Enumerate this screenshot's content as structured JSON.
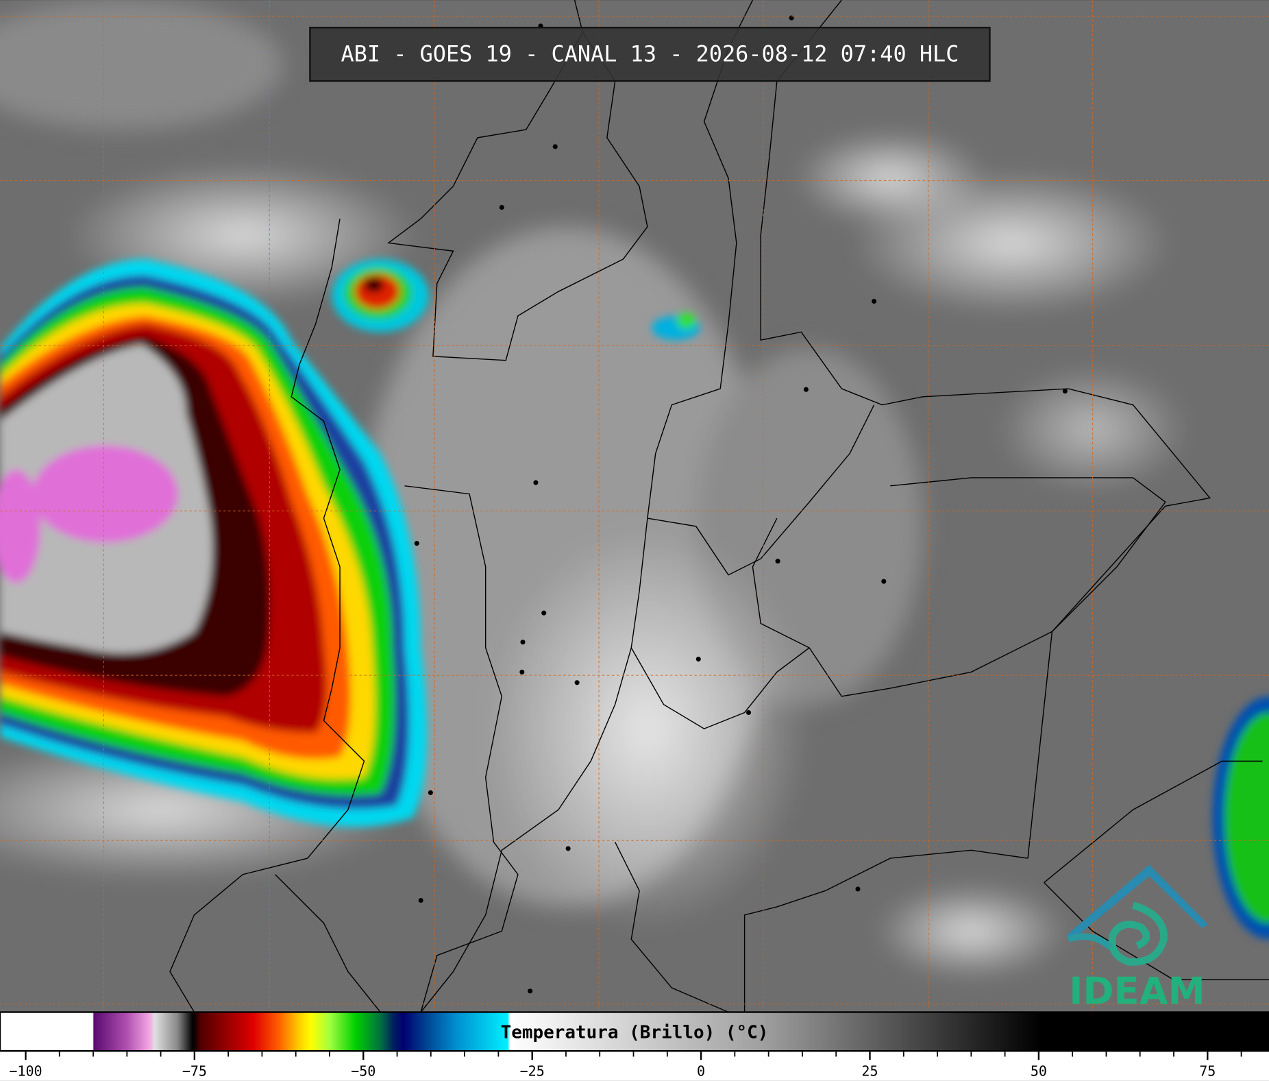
{
  "header": {
    "title": "ABI - GOES 19 - CANAL 13 - 2026-08-12 07:40 HLC"
  },
  "logo": {
    "text": "IDEAM"
  },
  "colorbar": {
    "label": "Temperatura (Brillo) (°C)",
    "lim": [
      -103.8,
      84.1
    ],
    "ticks": [
      {
        "value": -100,
        "label": "−100"
      },
      {
        "value": -75,
        "label": "−75"
      },
      {
        "value": -50,
        "label": "−50"
      },
      {
        "value": -25,
        "label": "−25"
      },
      0,
      25,
      50,
      75
    ],
    "minor_ticks": [
      -95,
      -90,
      -85,
      -80,
      -70,
      -65,
      -60,
      -55,
      -45,
      -40,
      -35,
      -30,
      -20,
      -15,
      -10,
      -5,
      5,
      10,
      15,
      20,
      30,
      35,
      40,
      45,
      55,
      60,
      65,
      70,
      80
    ]
  }
}
